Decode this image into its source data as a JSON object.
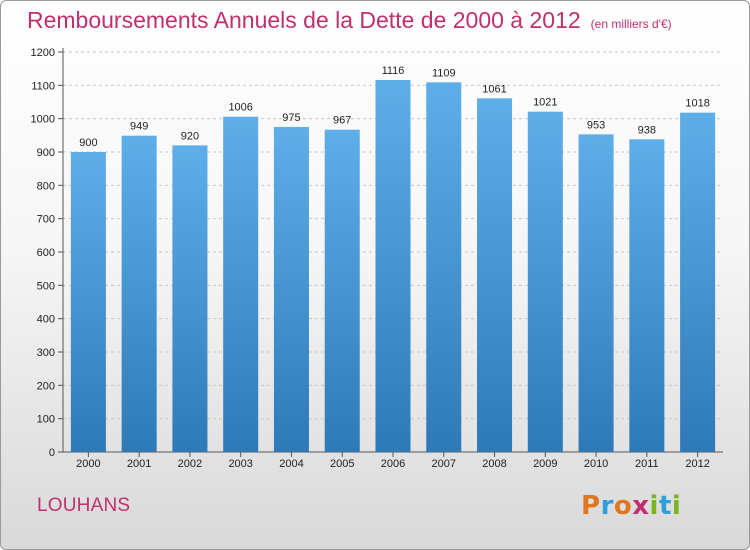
{
  "header": {
    "title": "Remboursements Annuels de la Dette de 2000 à 2012",
    "subtitle": "(en milliers d'€)"
  },
  "footer": {
    "commune": "LOUHANS",
    "logo_text": "Proxiti"
  },
  "colors": {
    "title": "#c0306e",
    "bar_top": "#5eaee9",
    "bar_bottom": "#2e7ab8",
    "logo_letters": [
      "#e0771f",
      "#2e9fd8",
      "#e0771f",
      "#c0306e",
      "#7ab51d",
      "#2e9fd8",
      "#7ab51d"
    ]
  },
  "chart_data": {
    "type": "bar",
    "title": "Remboursements Annuels de la Dette de 2000 à 2012",
    "subtitle": "(en milliers d'€)",
    "categories": [
      "2000",
      "2001",
      "2002",
      "2003",
      "2004",
      "2005",
      "2006",
      "2007",
      "2008",
      "2009",
      "2010",
      "2011",
      "2012"
    ],
    "values": [
      900,
      949,
      920,
      1006,
      975,
      967,
      1116,
      1109,
      1061,
      1021,
      953,
      938,
      1018
    ],
    "ylim": [
      0,
      1200
    ],
    "yticks": [
      0,
      100,
      200,
      300,
      400,
      500,
      600,
      700,
      800,
      900,
      1000,
      1100,
      1200
    ],
    "grid": true,
    "legend": "none"
  }
}
